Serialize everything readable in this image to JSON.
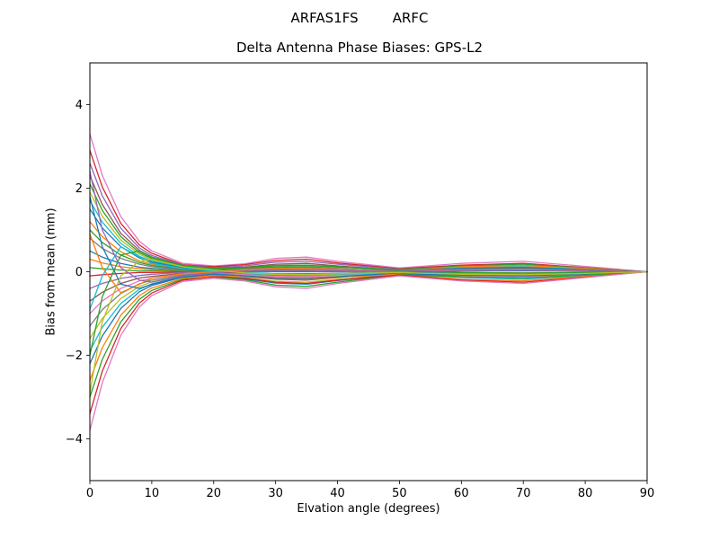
{
  "chart_data": {
    "type": "line",
    "suptitle": "ARFAS1FS        ARFC",
    "title": "Delta Antenna Phase Biases: GPS-L2",
    "xlabel": "Elvation angle (degrees)",
    "ylabel": "Bias from mean (mm)",
    "xlim": [
      0,
      90
    ],
    "ylim": [
      -5,
      5
    ],
    "xticks": [
      0,
      10,
      20,
      30,
      40,
      50,
      60,
      70,
      80,
      90
    ],
    "yticks": [
      -4,
      -2,
      0,
      2,
      4
    ],
    "grid": false,
    "legend_position": "none",
    "x": [
      0,
      2,
      5,
      8,
      10,
      15,
      20,
      25,
      30,
      35,
      40,
      50,
      60,
      70,
      80,
      90
    ],
    "series": [
      {
        "color": "#e377c2",
        "values": [
          3.3,
          2.31,
          1.32,
          0.73,
          0.5,
          0.2,
          0.14,
          0.19,
          0.32,
          0.35,
          0.25,
          0.09,
          0.2,
          0.25,
          0.13,
          0
        ]
      },
      {
        "color": "#d62728",
        "values": [
          2.9,
          2.03,
          1.16,
          0.64,
          0.44,
          0.17,
          0.12,
          0.17,
          0.27,
          0.3,
          0.21,
          0.07,
          0.16,
          0.2,
          0.1,
          0
        ]
      },
      {
        "color": "#9467bd",
        "values": [
          2.6,
          1.82,
          1.04,
          0.57,
          0.39,
          0.16,
          0.1,
          0.14,
          0.23,
          0.25,
          0.18,
          0.06,
          0.12,
          0.15,
          0.08,
          0
        ]
      },
      {
        "color": "#8c564b",
        "values": [
          2.3,
          1.61,
          0.92,
          0.51,
          0.35,
          0.14,
          0.09,
          0.11,
          0.18,
          0.2,
          0.14,
          0.04,
          0.08,
          0.1,
          0.05,
          0
        ]
      },
      {
        "color": "#2ca02c",
        "values": [
          2.1,
          1.47,
          0.84,
          0.46,
          0.32,
          0.13,
          0.07,
          0.08,
          0.14,
          0.15,
          0.11,
          0.05,
          0.14,
          0.18,
          0.09,
          0
        ]
      },
      {
        "color": "#bcbd22",
        "values": [
          1.9,
          1.33,
          0.76,
          0.42,
          0.29,
          0.11,
          0.06,
          0.06,
          0.09,
          0.1,
          0.07,
          0.02,
          0.04,
          0.05,
          0.03,
          0
        ]
      },
      {
        "color": "#17becf",
        "values": [
          1.7,
          1.19,
          0.68,
          0.37,
          0.26,
          0.1,
          0.04,
          0.03,
          0.05,
          0.05,
          0.04,
          0.03,
          0.1,
          0.12,
          0.06,
          0
        ]
      },
      {
        "color": "#1f77b4",
        "values": [
          1.5,
          1.05,
          0.6,
          0.33,
          0.23,
          0.09,
          0.03,
          0,
          0,
          0,
          0,
          0.02,
          0.06,
          0.08,
          0.04,
          0
        ]
      },
      {
        "color": "#ff7f0e",
        "values": [
          1.2,
          0.84,
          0.48,
          0.26,
          0.18,
          0.07,
          0.01,
          -0.03,
          -0.05,
          -0.05,
          -0.04,
          0.03,
          0.12,
          0.15,
          0.08,
          0
        ]
      },
      {
        "color": "#2ca02c",
        "values": [
          1.0,
          0.7,
          0.4,
          0.22,
          0.15,
          0.06,
          0.04,
          0.07,
          0.11,
          0.12,
          0.08,
          0,
          -0.04,
          -0.05,
          -0.03,
          0
        ]
      },
      {
        "color": "#7f7f7f",
        "values": [
          0.8,
          0.56,
          0.32,
          0.18,
          0.12,
          0.05,
          -0.01,
          -0.06,
          -0.09,
          -0.1,
          -0.07,
          -0.01,
          0.02,
          0.02,
          0.01,
          0
        ]
      },
      {
        "color": "#1f77b4",
        "values": [
          0.5,
          0.35,
          0.2,
          0.11,
          0.08,
          0.03,
          0.03,
          0.04,
          0.07,
          0.08,
          0.06,
          0.03,
          0.08,
          0.1,
          0.05,
          0
        ]
      },
      {
        "color": "#ff7f0e",
        "values": [
          0.3,
          0.21,
          0.12,
          0.07,
          0.05,
          0.02,
          -0.02,
          -0.08,
          -0.14,
          -0.15,
          -0.11,
          -0.03,
          -0.06,
          -0.08,
          -0.04,
          0
        ]
      },
      {
        "color": "#2ca02c",
        "values": [
          0.1,
          0.07,
          0.04,
          0.02,
          0.02,
          0.01,
          0.01,
          0.03,
          0.05,
          0.05,
          0.04,
          0.02,
          0.04,
          0.05,
          0.03,
          0
        ]
      },
      {
        "color": "#d62728",
        "values": [
          -0.1,
          -0.07,
          -0.04,
          -0.02,
          -0.02,
          -0.01,
          -0.01,
          -0.03,
          -0.05,
          -0.05,
          -0.04,
          -0.01,
          -0.02,
          -0.03,
          -0.02,
          0
        ]
      },
      {
        "color": "#9467bd",
        "values": [
          -0.4,
          -0.28,
          -0.16,
          -0.09,
          -0.06,
          -0.02,
          0.01,
          0.06,
          0.09,
          0.1,
          0.07,
          -0.01,
          -0.08,
          -0.1,
          -0.05,
          0
        ]
      },
      {
        "color": "#8c564b",
        "values": [
          -0.7,
          -0.49,
          -0.28,
          -0.15,
          -0.11,
          -0.04,
          -0.05,
          -0.11,
          -0.18,
          -0.2,
          -0.14,
          -0.01,
          0.04,
          0.05,
          0.03,
          0
        ]
      },
      {
        "color": "#e377c2",
        "values": [
          -1.0,
          -0.7,
          -0.4,
          -0.22,
          -0.15,
          -0.06,
          -0.04,
          -0.07,
          -0.11,
          -0.12,
          -0.08,
          -0.04,
          -0.1,
          -0.12,
          -0.06,
          0
        ]
      },
      {
        "color": "#7f7f7f",
        "values": [
          -1.3,
          -0.91,
          -0.52,
          -0.29,
          -0.2,
          -0.08,
          -0.02,
          0.01,
          0.02,
          0.02,
          0.01,
          -0.03,
          -0.12,
          -0.15,
          -0.08,
          0
        ]
      },
      {
        "color": "#bcbd22",
        "values": [
          -1.6,
          -1.12,
          -0.64,
          -0.35,
          -0.24,
          -0.1,
          -0.08,
          -0.14,
          -0.23,
          -0.25,
          -0.18,
          -0.04,
          -0.04,
          -0.05,
          -0.03,
          0
        ]
      },
      {
        "color": "#17becf",
        "values": [
          -1.9,
          -1.33,
          -0.76,
          -0.42,
          -0.29,
          -0.11,
          -0.05,
          -0.04,
          -0.07,
          -0.08,
          -0.06,
          -0.04,
          -0.14,
          -0.18,
          -0.09,
          0
        ]
      },
      {
        "color": "#1f77b4",
        "values": [
          -2.2,
          -1.54,
          -0.88,
          -0.48,
          -0.33,
          -0.13,
          -0.1,
          -0.17,
          -0.27,
          -0.3,
          -0.21,
          -0.05,
          -0.08,
          -0.1,
          -0.05,
          0
        ]
      },
      {
        "color": "#ff7f0e",
        "values": [
          -2.6,
          -1.82,
          -1.04,
          -0.57,
          -0.39,
          -0.16,
          -0.09,
          -0.1,
          -0.16,
          -0.18,
          -0.13,
          -0.06,
          -0.18,
          -0.22,
          -0.11,
          0
        ]
      },
      {
        "color": "#2ca02c",
        "values": [
          -3.0,
          -2.1,
          -1.2,
          -0.66,
          -0.45,
          -0.18,
          -0.13,
          -0.19,
          -0.32,
          -0.35,
          -0.25,
          -0.07,
          -0.12,
          -0.15,
          -0.08,
          0
        ]
      },
      {
        "color": "#d62728",
        "values": [
          -3.4,
          -2.38,
          -1.36,
          -0.75,
          -0.51,
          -0.2,
          -0.12,
          -0.15,
          -0.25,
          -0.28,
          -0.2,
          -0.08,
          -0.2,
          -0.25,
          -0.13,
          0
        ]
      },
      {
        "color": "#e377c2",
        "values": [
          -3.8,
          -2.66,
          -1.52,
          -0.84,
          -0.57,
          -0.23,
          -0.16,
          -0.22,
          -0.36,
          -0.4,
          -0.28,
          -0.1,
          -0.22,
          -0.28,
          -0.14,
          0
        ]
      },
      {
        "color": "#ff7f0e",
        "values": [
          0.9,
          0.1,
          -0.5,
          -0.3,
          -0.15,
          -0.05,
          0,
          0.05,
          0.08,
          0.08,
          0.06,
          0.02,
          0.05,
          0.06,
          0.03,
          0
        ]
      },
      {
        "color": "#17becf",
        "values": [
          -0.9,
          -0.1,
          0.6,
          0.35,
          0.2,
          0.08,
          0.02,
          -0.02,
          -0.05,
          -0.06,
          -0.04,
          -0.01,
          -0.05,
          -0.06,
          -0.03,
          0
        ]
      },
      {
        "color": "#1f77b4",
        "values": [
          1.8,
          0.6,
          -0.3,
          -0.4,
          -0.3,
          -0.12,
          -0.06,
          -0.1,
          -0.15,
          -0.16,
          -0.12,
          -0.03,
          0.02,
          0.03,
          0.02,
          0
        ]
      },
      {
        "color": "#2ca02c",
        "values": [
          -2.0,
          -0.6,
          0.4,
          0.5,
          0.35,
          0.15,
          0.07,
          0.1,
          0.15,
          0.16,
          0.12,
          0.03,
          -0.02,
          -0.03,
          -0.02,
          0
        ]
      },
      {
        "color": "#9467bd",
        "values": [
          2.4,
          1.0,
          0.1,
          -0.2,
          -0.25,
          -0.1,
          -0.03,
          0.02,
          0.04,
          0.05,
          0.03,
          0.01,
          0.03,
          0.04,
          0.02,
          0
        ]
      },
      {
        "color": "#bcbd22",
        "values": [
          -2.9,
          -1.2,
          -0.1,
          0.25,
          0.3,
          0.12,
          0.04,
          -0.03,
          -0.06,
          -0.07,
          -0.05,
          -0.02,
          -0.06,
          -0.07,
          -0.04,
          0
        ]
      }
    ]
  }
}
